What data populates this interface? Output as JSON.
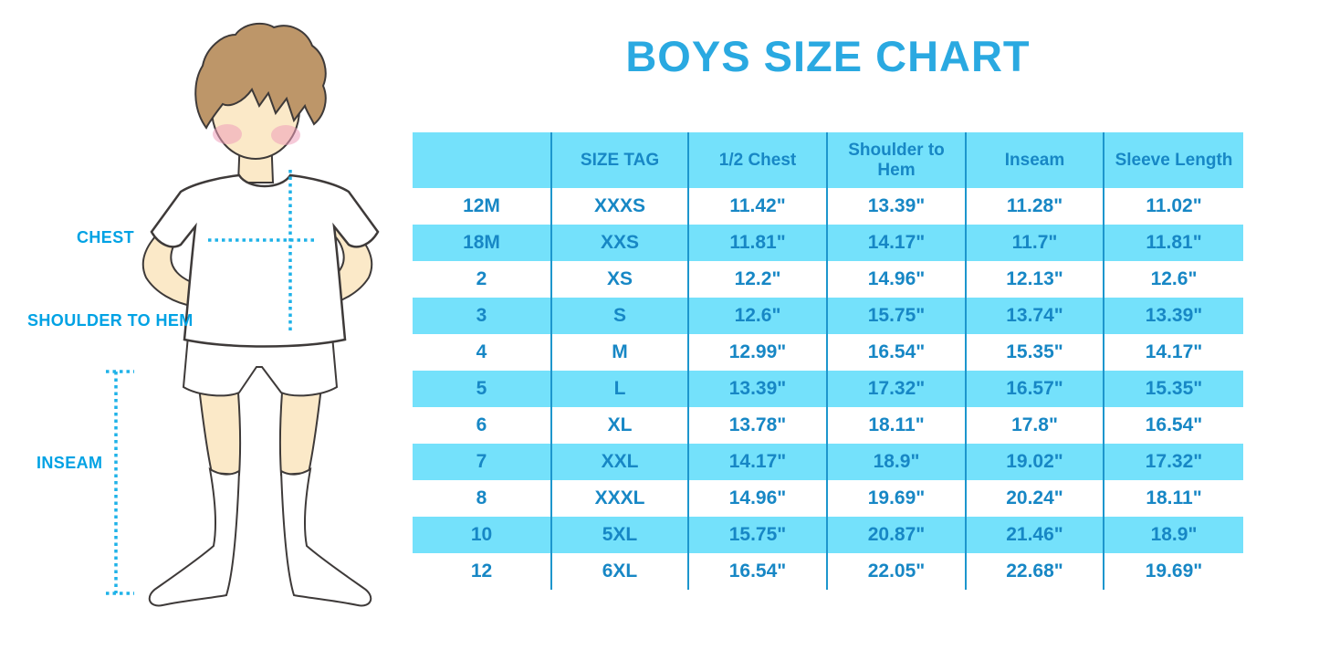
{
  "title": "BOYS SIZE CHART",
  "figure": {
    "labels": [
      {
        "id": "chest",
        "text": "CHEST"
      },
      {
        "id": "shoulder_to_hem",
        "text": "SHOULDER TO HEM"
      },
      {
        "id": "inseam",
        "text": "INSEAM"
      }
    ]
  },
  "colors": {
    "title": "#2aa9e1",
    "label": "#00a2e4",
    "text": "#1787c5",
    "band": "#74e1fb",
    "line": "#1d96cd",
    "dot": "#1fb2e8",
    "hair": "#bd9669",
    "skin": "#fbe9c8",
    "cheek": "#ee9fba",
    "outline": "#3e3a39"
  },
  "chart_data": {
    "type": "table",
    "title": "BOYS SIZE CHART",
    "columns": [
      "",
      "SIZE TAG",
      "1/2 Chest",
      "Shoulder to Hem",
      "Inseam",
      "Sleeve Length"
    ],
    "rows": [
      [
        "12M",
        "XXXS",
        "11.42\"",
        "13.39\"",
        "11.28\"",
        "11.02\""
      ],
      [
        "18M",
        "XXS",
        "11.81\"",
        "14.17\"",
        "11.7\"",
        "11.81\""
      ],
      [
        "2",
        "XS",
        "12.2\"",
        "14.96\"",
        "12.13\"",
        "12.6\""
      ],
      [
        "3",
        "S",
        "12.6\"",
        "15.75\"",
        "13.74\"",
        "13.39\""
      ],
      [
        "4",
        "M",
        "12.99\"",
        "16.54\"",
        "15.35\"",
        "14.17\""
      ],
      [
        "5",
        "L",
        "13.39\"",
        "17.32\"",
        "16.57\"",
        "15.35\""
      ],
      [
        "6",
        "XL",
        "13.78\"",
        "18.11\"",
        "17.8\"",
        "16.54\""
      ],
      [
        "7",
        "XXL",
        "14.17\"",
        "18.9\"",
        "19.02\"",
        "17.32\""
      ],
      [
        "8",
        "XXXL",
        "14.96\"",
        "19.69\"",
        "20.24\"",
        "18.11\""
      ],
      [
        "10",
        "5XL",
        "15.75\"",
        "20.87\"",
        "21.46\"",
        "18.9\""
      ],
      [
        "12",
        "6XL",
        "16.54\"",
        "22.05\"",
        "22.68\"",
        "19.69\""
      ]
    ]
  }
}
